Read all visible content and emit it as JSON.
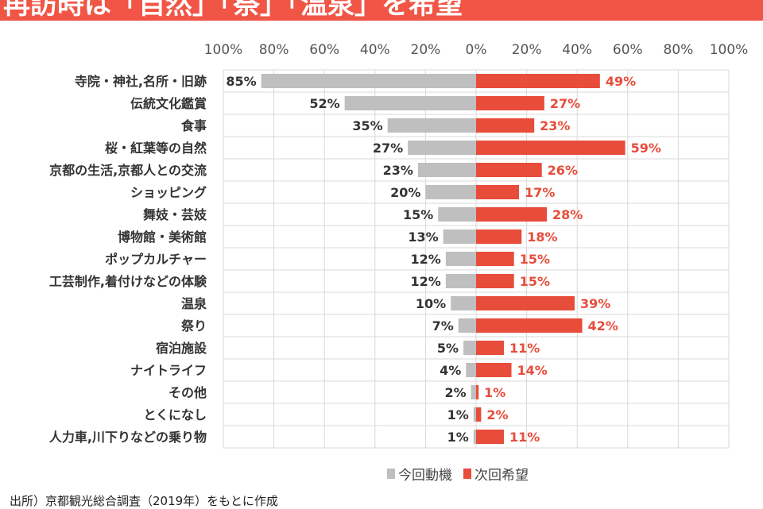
{
  "title": "再訪時は「自然」「祭」「温泉」を希望",
  "source": "出所）京都観光総合調査（2019年）をもとに作成",
  "colors": {
    "left": "#bfbfbf",
    "right": "#e84c3a",
    "left_label": "#333333",
    "right_label": "#e84c3a"
  },
  "chart_data": {
    "type": "bar",
    "orientation": "horizontal-butterfly",
    "x_ticks": [
      "100%",
      "80%",
      "60%",
      "40%",
      "20%",
      "0%",
      "20%",
      "40%",
      "60%",
      "80%",
      "100%"
    ],
    "xlim": [
      -100,
      100
    ],
    "grid": true,
    "legend_position": "bottom",
    "categories": [
      "寺院・神社,名所・旧跡",
      "伝統文化鑑賞",
      "食事",
      "桜・紅葉等の自然",
      "京都の生活,京都人との交流",
      "ショッピング",
      "舞妓・芸妓",
      "博物館・美術館",
      "ポップカルチャー",
      "工芸制作,着付けなどの体験",
      "温泉",
      "祭り",
      "宿泊施設",
      "ナイトライフ",
      "その他",
      "とくになし",
      "人力車,川下りなどの乗り物"
    ],
    "series": [
      {
        "name": "今回動機",
        "values": [
          85,
          52,
          35,
          27,
          23,
          20,
          15,
          13,
          12,
          12,
          10,
          7,
          5,
          4,
          2,
          1,
          1
        ]
      },
      {
        "name": "次回希望",
        "values": [
          49,
          27,
          23,
          59,
          26,
          17,
          28,
          18,
          15,
          15,
          39,
          42,
          11,
          14,
          1,
          2,
          11
        ]
      }
    ]
  }
}
